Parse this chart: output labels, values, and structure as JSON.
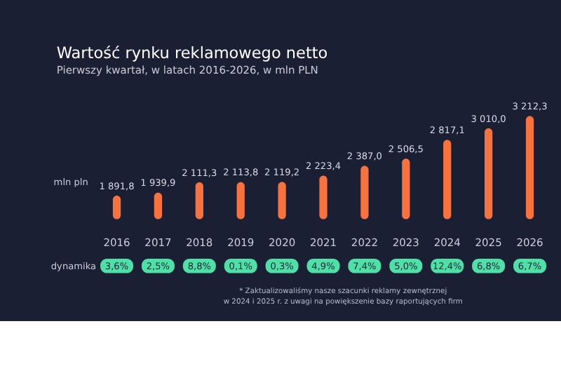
{
  "chart_data": {
    "type": "bar",
    "title": "Wartość rynku reklamowego netto",
    "subtitle": "Pierwszy kwartał, w latach 2016-2026, w mln PLN",
    "ylabel": "mln pln",
    "categories": [
      "2016",
      "2017",
      "2018",
      "2019",
      "2020",
      "2021",
      "2022",
      "2023",
      "2024",
      "2025",
      "2026"
    ],
    "values": [
      1891.8,
      1939.9,
      2111.3,
      2113.8,
      2119.2,
      2223.4,
      2387.0,
      2506.5,
      2817.1,
      3010.0,
      3212.3
    ],
    "value_labels": [
      "1 891,8",
      "1 939,9",
      "2 111,3",
      "2 113,8",
      "2 119,2",
      "2 223,4",
      "2 387,0",
      "2 506,5",
      "2 817,1",
      "3 010,0",
      "3 212,3"
    ],
    "color": "#f7723f",
    "ylim": [
      1500,
      3250
    ],
    "grid": false,
    "annotations": [
      "dynamika",
      "3,6%",
      "2,5%",
      "8,8%",
      "0,1%",
      "0,3%",
      "4,9%",
      "7,4%",
      "5,0%",
      "12,4%",
      "6,8%",
      "6,7%",
      "* Zaktualizowaliśmy nasze szacunki reklamy zewnętrznej w 2024 i 2025 r. z uwagi na powiększenie bazy raportujących firm"
    ]
  }
}
